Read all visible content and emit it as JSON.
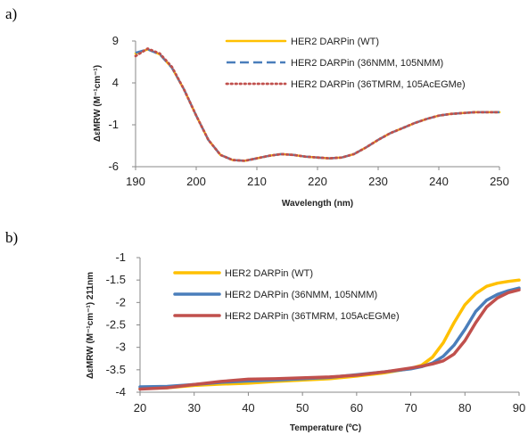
{
  "panels": [
    {
      "label": "a)"
    },
    {
      "label": "b)"
    }
  ],
  "chart_data": [
    {
      "type": "line",
      "xlabel": "Wavelength (nm)",
      "ylabel": "ΔεMRW (M⁻¹cm⁻¹)",
      "xlim": [
        190,
        250
      ],
      "ylim": [
        -6,
        9
      ],
      "xticks": [
        190,
        200,
        210,
        220,
        230,
        240,
        250
      ],
      "yticks": [
        9,
        4,
        -1,
        -6
      ],
      "legend_position": "top-right",
      "series": [
        {
          "name": "HER2 DARPin (WT)",
          "color": "#FFC000",
          "style": "solid",
          "x": [
            190,
            192,
            194,
            196,
            198,
            200,
            202,
            204,
            206,
            208,
            210,
            212,
            214,
            216,
            218,
            220,
            222,
            224,
            226,
            228,
            230,
            232,
            234,
            236,
            238,
            240,
            242,
            244,
            246,
            248,
            250
          ],
          "y": [
            7.5,
            8.0,
            7.4,
            5.8,
            3.2,
            0.1,
            -2.8,
            -4.6,
            -5.2,
            -5.3,
            -5.0,
            -4.7,
            -4.5,
            -4.6,
            -4.8,
            -4.9,
            -5.0,
            -4.9,
            -4.5,
            -3.7,
            -2.8,
            -2.0,
            -1.4,
            -0.8,
            -0.3,
            0.1,
            0.3,
            0.4,
            0.5,
            0.5,
            0.5
          ]
        },
        {
          "name": "HER2 DARPin (36NMM, 105NMM)",
          "color": "#4A7EBB",
          "style": "dashed",
          "x": [
            190,
            192,
            194,
            196,
            198,
            200,
            202,
            204,
            206,
            208,
            210,
            212,
            214,
            216,
            218,
            220,
            222,
            224,
            226,
            228,
            230,
            232,
            234,
            236,
            238,
            240,
            242,
            244,
            246,
            248,
            250
          ],
          "y": [
            7.6,
            8.0,
            7.4,
            5.8,
            3.2,
            0.1,
            -2.8,
            -4.6,
            -5.2,
            -5.3,
            -5.0,
            -4.7,
            -4.5,
            -4.6,
            -4.8,
            -4.9,
            -5.0,
            -4.9,
            -4.5,
            -3.7,
            -2.8,
            -2.0,
            -1.4,
            -0.8,
            -0.3,
            0.1,
            0.3,
            0.4,
            0.5,
            0.5,
            0.5
          ]
        },
        {
          "name": "HER2 DARPin (36TMRM, 105AcEGMe)",
          "color": "#C0504D",
          "style": "dotted",
          "x": [
            190,
            192,
            194,
            196,
            198,
            200,
            202,
            204,
            206,
            208,
            210,
            212,
            214,
            216,
            218,
            220,
            222,
            224,
            226,
            228,
            230,
            232,
            234,
            236,
            238,
            240,
            242,
            244,
            246,
            248,
            250
          ],
          "y": [
            7.2,
            8.1,
            7.5,
            5.9,
            3.2,
            0.1,
            -2.8,
            -4.6,
            -5.2,
            -5.3,
            -5.0,
            -4.7,
            -4.5,
            -4.6,
            -4.8,
            -4.9,
            -5.0,
            -4.9,
            -4.5,
            -3.7,
            -2.8,
            -2.0,
            -1.4,
            -0.8,
            -0.3,
            0.1,
            0.3,
            0.4,
            0.5,
            0.5,
            0.5
          ]
        }
      ]
    },
    {
      "type": "line",
      "xlabel": "Temperature (ºC)",
      "ylabel": "ΔεMRW (M⁻¹cm⁻¹) 211nm",
      "xlim": [
        20,
        90
      ],
      "ylim": [
        -4,
        -1
      ],
      "xticks": [
        20,
        30,
        40,
        50,
        60,
        70,
        80,
        90
      ],
      "yticks": [
        -1,
        -1.5,
        -2,
        -2.5,
        -3,
        -3.5,
        -4
      ],
      "legend_position": "top-left",
      "series": [
        {
          "name": "HER2 DARPin (WT)",
          "color": "#FFC000",
          "style": "solid",
          "x": [
            20,
            25,
            30,
            35,
            40,
            45,
            50,
            55,
            60,
            65,
            70,
            72,
            74,
            76,
            78,
            80,
            82,
            84,
            86,
            88,
            90
          ],
          "y": [
            -3.92,
            -3.9,
            -3.85,
            -3.82,
            -3.8,
            -3.76,
            -3.73,
            -3.7,
            -3.64,
            -3.57,
            -3.47,
            -3.4,
            -3.22,
            -2.9,
            -2.45,
            -2.05,
            -1.8,
            -1.64,
            -1.57,
            -1.53,
            -1.5
          ]
        },
        {
          "name": "HER2 DARPin (36NMM, 105NMM)",
          "color": "#4A7EBB",
          "style": "solid",
          "x": [
            20,
            25,
            30,
            35,
            40,
            45,
            50,
            55,
            60,
            65,
            70,
            72,
            74,
            76,
            78,
            80,
            82,
            84,
            86,
            88,
            90
          ],
          "y": [
            -3.88,
            -3.87,
            -3.83,
            -3.78,
            -3.75,
            -3.73,
            -3.7,
            -3.67,
            -3.61,
            -3.55,
            -3.48,
            -3.43,
            -3.35,
            -3.2,
            -2.95,
            -2.6,
            -2.2,
            -1.95,
            -1.82,
            -1.74,
            -1.68
          ]
        },
        {
          "name": "HER2 DARPin (36TMRM, 105AcEGMe)",
          "color": "#C0504D",
          "style": "solid",
          "x": [
            20,
            25,
            30,
            35,
            40,
            45,
            50,
            55,
            60,
            65,
            70,
            72,
            74,
            76,
            78,
            80,
            82,
            84,
            86,
            88,
            90
          ],
          "y": [
            -3.93,
            -3.9,
            -3.83,
            -3.76,
            -3.71,
            -3.7,
            -3.68,
            -3.66,
            -3.62,
            -3.55,
            -3.46,
            -3.42,
            -3.37,
            -3.3,
            -3.15,
            -2.85,
            -2.45,
            -2.1,
            -1.9,
            -1.78,
            -1.72
          ]
        }
      ]
    }
  ]
}
